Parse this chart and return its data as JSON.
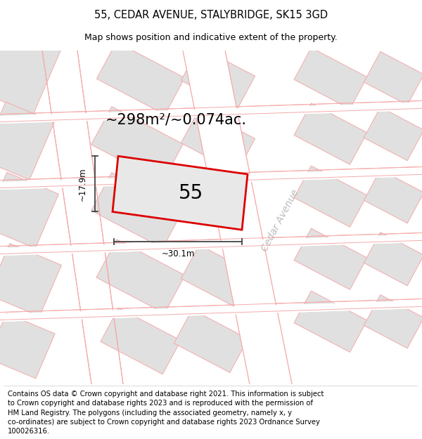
{
  "title_line1": "55, CEDAR AVENUE, STALYBRIDGE, SK15 3GD",
  "title_line2": "Map shows position and indicative extent of the property.",
  "area_text": "~298m²/~0.074ac.",
  "property_number": "55",
  "dim_width": "~30.1m",
  "dim_height": "~17.9m",
  "street_label": "Cedar Avenue",
  "footer_text": "Contains OS data © Crown copyright and database right 2021. This information is subject to Crown copyright and database rights 2023 and is reproduced with the permission of HM Land Registry. The polygons (including the associated geometry, namely x, y co-ordinates) are subject to Crown copyright and database rights 2023 Ordnance Survey 100026316.",
  "bg_color": "#f5f5f5",
  "block_fill": "#e0e0e0",
  "property_outline_color": "#dd0000",
  "property_fill": "#e8e8e8",
  "dim_line_color": "#444444",
  "street_text_color": "#bbbbbb",
  "pink_line_color": "#f5aaaa",
  "title_fontsize": 10.5,
  "subtitle_fontsize": 9,
  "area_fontsize": 15,
  "number_fontsize": 20,
  "dim_fontsize": 8.5,
  "street_fontsize": 10,
  "footer_fontsize": 7.2
}
